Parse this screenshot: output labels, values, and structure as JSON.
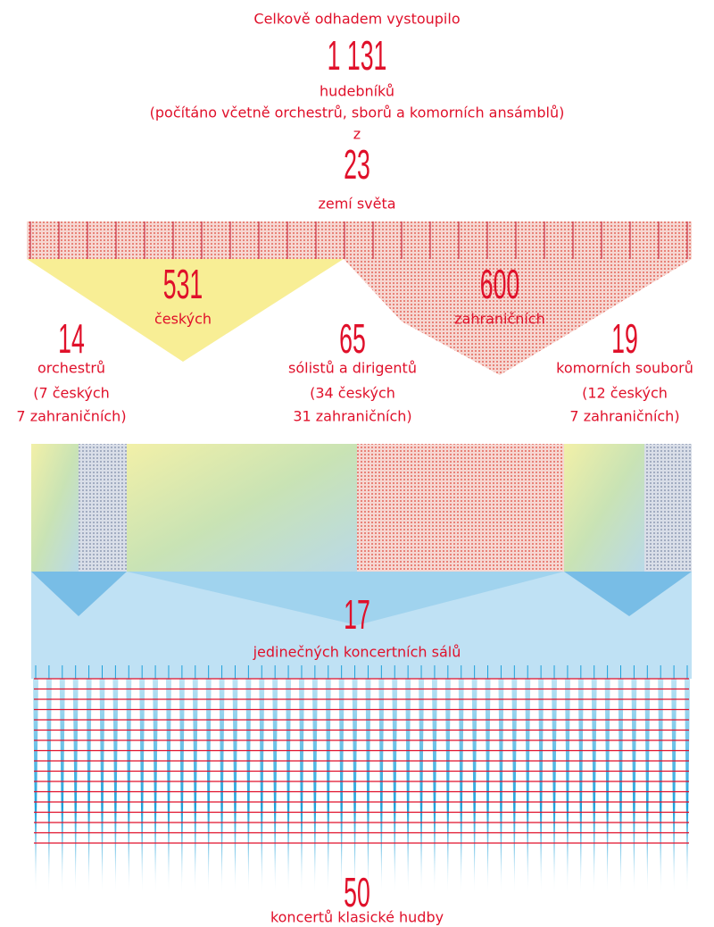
{
  "header": {
    "intro": "Celkově odhadem vystoupilo",
    "musicians_count": "1 131",
    "musicians_label": "hudebníků",
    "musicians_note": "(počítáno včetně orchestrů, sborů a komorních ansámblů)",
    "from": "z",
    "countries_count": "23",
    "countries_label": "zemí světa"
  },
  "split": [
    {
      "count": "531",
      "label": "českých"
    },
    {
      "count": "600",
      "label": "zahraničních"
    }
  ],
  "groups": [
    {
      "count": "14",
      "label": "orchestrů",
      "detail": [
        "(7 českých",
        "7 zahraničních)"
      ]
    },
    {
      "count": "65",
      "label": "sólistů a dirigentů",
      "detail": [
        "(34 českých",
        "31 zahraničních)"
      ]
    },
    {
      "count": "19",
      "label": "komorních souborů",
      "detail": [
        "(12 českých",
        "7 zahraničních)"
      ]
    }
  ],
  "halls": {
    "count": "17",
    "label": "jedinečných koncertních sálů"
  },
  "concerts": {
    "count": "50",
    "label": "koncertů klasické hudby"
  }
}
